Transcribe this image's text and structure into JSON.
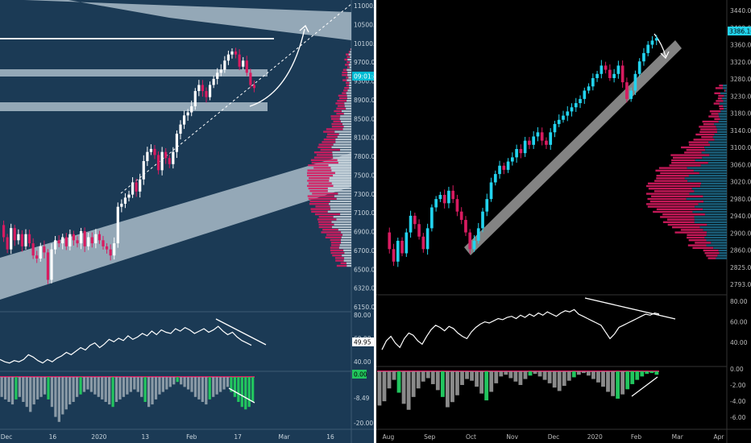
{
  "chart_data": [
    {
      "type": "candlestick",
      "panel": "left",
      "background": "#1b3a55",
      "up_color": "#ffffff",
      "down_color": "#d81b60",
      "price_axis": {
        "ticks": [
          "11000.00",
          "10500.00",
          "10100.00",
          "9700.00",
          "9300.00",
          "8900.00",
          "8500.00",
          "8100.00",
          "7800.00",
          "7500.00",
          "7300.00",
          "7100.00",
          "6900.00",
          "6700.00",
          "6500.00",
          "6320.00",
          "6150.00"
        ],
        "last_price_label": "09:01:49"
      },
      "time_axis": [
        "Dec",
        "16",
        "2020",
        "13",
        "Feb",
        "17",
        "Mar",
        "16"
      ],
      "price_series": [
        7500,
        7300,
        7100,
        7450,
        7250,
        7350,
        7150,
        7350,
        7200,
        7000,
        6950,
        7150,
        7050,
        6600,
        7100,
        7250,
        7200,
        7300,
        7150,
        7350,
        7250,
        7200,
        7400,
        7150,
        7300,
        7200,
        7350,
        7250,
        7150,
        7100,
        7000,
        7200,
        7800,
        7850,
        7950,
        8000,
        8200,
        8050,
        8250,
        8550,
        8700,
        8750,
        8650,
        8400,
        8700,
        8600,
        8500,
        8700,
        9000,
        9150,
        9300,
        9350,
        9450,
        9700,
        9800,
        9700,
        9600,
        9800,
        9900,
        10000,
        10050,
        10200,
        10300,
        10350,
        10300,
        10100,
        10200,
        10000,
        9800,
        9750
      ],
      "rsi": {
        "ticks": [
          "80.00",
          "60.00",
          "40.00"
        ],
        "last_label": "49.95",
        "values": [
          38,
          36,
          35,
          37,
          36,
          38,
          42,
          40,
          37,
          35,
          38,
          36,
          39,
          41,
          44,
          42,
          45,
          48,
          46,
          50,
          52,
          48,
          51,
          55,
          53,
          56,
          54,
          58,
          55,
          57,
          60,
          58,
          62,
          59,
          63,
          61,
          60,
          64,
          62,
          65,
          63,
          60,
          62,
          64,
          61,
          63,
          66,
          62,
          59,
          61,
          57,
          54,
          52,
          50
        ]
      },
      "histogram": {
        "ticks": [
          "0.00",
          "-8.49",
          "-20.00"
        ],
        "zero_label": "0.00",
        "values": [
          -8,
          -9,
          -10,
          -11,
          -9,
          -8,
          -10,
          -12,
          -14,
          -11,
          -9,
          -8,
          -7,
          -9,
          -12,
          -16,
          -18,
          -15,
          -13,
          -11,
          -10,
          -8,
          -7,
          -6,
          -5,
          -6,
          -7,
          -8,
          -9,
          -10,
          -11,
          -12,
          -10,
          -9,
          -8,
          -7,
          -6,
          -5,
          -6,
          -8,
          -10,
          -12,
          -11,
          -9,
          -7,
          -6,
          -5,
          -4,
          -3,
          -2,
          -3,
          -4,
          -5,
          -6,
          -8,
          -9,
          -10,
          -11,
          -9,
          -8,
          -7,
          -6,
          -5,
          -4,
          -6,
          -8,
          -10,
          -12,
          -13,
          -12,
          -10
        ]
      }
    },
    {
      "type": "candlestick",
      "panel": "right",
      "background": "#000000",
      "up_color": "#22d3ee",
      "down_color": "#d81b60",
      "price_axis": {
        "ticks": [
          "3440.00",
          "3400.00",
          "3360.00",
          "3320.00",
          "3280.00",
          "3230.00",
          "3180.00",
          "3140.00",
          "3100.00",
          "3060.00",
          "3020.00",
          "2980.00",
          "2940.00",
          "2900.00",
          "2860.00",
          "2825.00",
          "2793.00"
        ],
        "last_price_label": "3386.16"
      },
      "time_axis": [
        "Aug",
        "Sep",
        "Oct",
        "Nov",
        "Dec",
        "2020",
        "Feb",
        "Mar",
        "Apr"
      ],
      "price_series": [
        2920,
        2880,
        2850,
        2900,
        2870,
        2920,
        2960,
        2940,
        2910,
        2880,
        2930,
        2980,
        3000,
        3010,
        2990,
        3020,
        3000,
        2970,
        2950,
        2920,
        2880,
        2900,
        2930,
        2970,
        3000,
        3040,
        3060,
        3080,
        3070,
        3090,
        3100,
        3120,
        3110,
        3140,
        3130,
        3150,
        3160,
        3140,
        3130,
        3160,
        3180,
        3190,
        3200,
        3210,
        3220,
        3230,
        3240,
        3260,
        3270,
        3290,
        3300,
        3320,
        3310,
        3290,
        3300,
        3320,
        3280,
        3240,
        3260,
        3300,
        3330,
        3350,
        3370,
        3380,
        3386
      ],
      "rsi": {
        "ticks": [
          "80.00",
          "60.00",
          "40.00"
        ],
        "values": [
          40,
          48,
          52,
          46,
          42,
          50,
          55,
          53,
          48,
          45,
          52,
          58,
          62,
          60,
          57,
          61,
          59,
          55,
          52,
          50,
          56,
          60,
          63,
          65,
          64,
          66,
          68,
          67,
          69,
          70,
          68,
          71,
          69,
          72,
          70,
          73,
          71,
          74,
          72,
          70,
          73,
          75,
          74,
          76,
          72,
          70,
          68,
          66,
          64,
          62,
          56,
          50,
          54,
          60,
          62,
          64,
          66,
          68,
          70,
          72,
          71,
          73,
          72
        ]
      },
      "histogram": {
        "ticks": [
          "0.00",
          "-2.00",
          "-4.00",
          "-6.00"
        ],
        "values": [
          -4,
          -3.5,
          -2,
          -1,
          -2.5,
          -3.8,
          -4.5,
          -3,
          -2,
          -1.2,
          -0.8,
          -1.5,
          -2.2,
          -3,
          -4.2,
          -3.6,
          -2.8,
          -1.6,
          -0.9,
          -1.1,
          -1.8,
          -2.6,
          -3.4,
          -2.4,
          -1.4,
          -0.6,
          -0.4,
          -0.8,
          -1.2,
          -1.6,
          -0.9,
          -0.5,
          -0.3,
          -0.6,
          -1,
          -1.4,
          -1.9,
          -2.3,
          -1.7,
          -1.1,
          -0.7,
          -0.4,
          -0.2,
          -0.5,
          -0.9,
          -1.3,
          -1.8,
          -2.4,
          -2.9,
          -3.2,
          -2.7,
          -2.1,
          -1.5,
          -1,
          -0.6,
          -0.3,
          -0.2,
          -0.4
        ]
      }
    }
  ]
}
